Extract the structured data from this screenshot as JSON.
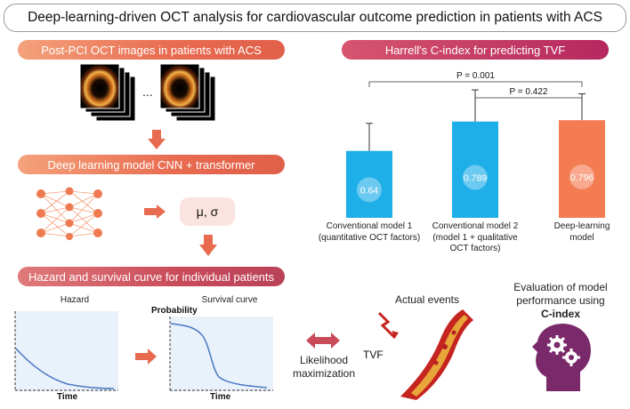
{
  "title": "Deep-learning-driven OCT analysis for cardiovascular outcome prediction in patients with ACS",
  "steps": {
    "oct_images": "Post-PCI OCT images in patients with ACS",
    "dl_model": "Deep learning model CNN + transformer",
    "hazard": "Hazard and survival curve for individual patients"
  },
  "ellipsis": "...",
  "mu_sigma": "μ, σ",
  "plots": {
    "hazard_label": "Hazard",
    "survival_label": "Survival curve",
    "probability_label": "Probability",
    "time_label_1": "Time",
    "time_label_2": "Time"
  },
  "likelihood": [
    "Likelihood",
    "maximization"
  ],
  "actual_events": "Actual events",
  "tvf": "TVF",
  "evaluation": [
    "Evaluation of model",
    "performance using"
  ],
  "cindex_label": "C-index",
  "colors": {
    "bar_blue": "#1eaee8",
    "bar_orange": "#f47c52",
    "curve": "#4a79c4",
    "arrow": "#e86a4f",
    "head": "#7a2a6a"
  },
  "chart_data": {
    "type": "bar",
    "title": "Harrell's C-index for predicting TVF",
    "categories": [
      "Conventional model 1 (quantitative OCT factors)",
      "Conventional model 2 (model 1 + qualitative OCT factors)",
      "Deep-learning model"
    ],
    "category_lines": [
      [
        "Conventional model 1",
        "(quantitative OCT factors)"
      ],
      [
        "Conventional model 2",
        "(model 1 + qualitative",
        "OCT factors)"
      ],
      [
        "Deep-learning",
        "model"
      ]
    ],
    "values": [
      0.64,
      0.789,
      0.796
    ],
    "value_labels": [
      "0.64",
      "0.789",
      "0.796"
    ],
    "error_upper": [
      0.78,
      0.95,
      0.93
    ],
    "bar_colors": [
      "#1eaee8",
      "#1eaee8",
      "#f47c52"
    ],
    "comparisons": [
      {
        "label": "P = 0.001",
        "from": 0,
        "to": 2
      },
      {
        "label": "P = 0.422",
        "from": 1,
        "to": 2
      }
    ]
  }
}
